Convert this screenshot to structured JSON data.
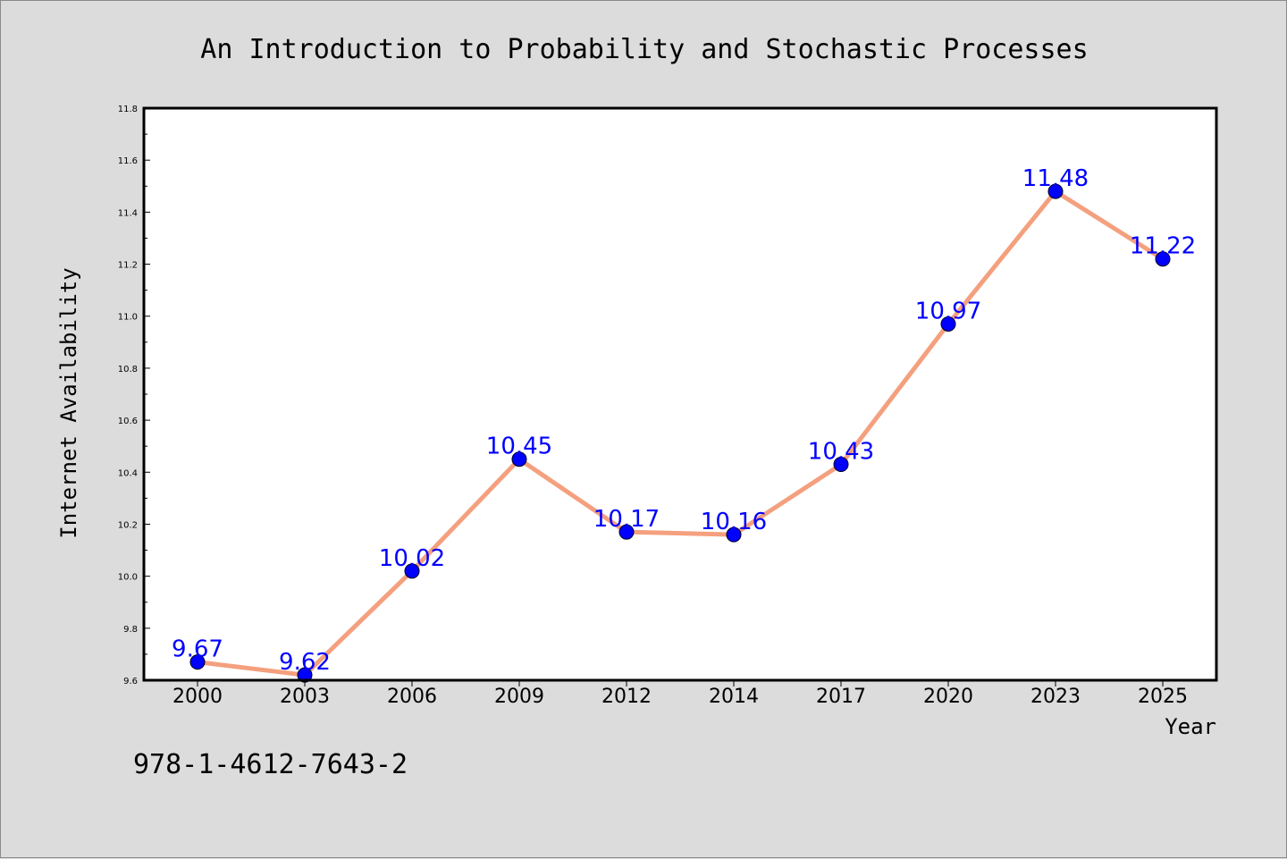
{
  "chart_data": {
    "type": "line",
    "title": "An Introduction to Probability and Stochastic Processes",
    "xlabel": "Year",
    "ylabel": "Internet Availability",
    "categories": [
      "2000",
      "2003",
      "2006",
      "2009",
      "2012",
      "2014",
      "2017",
      "2020",
      "2023",
      "2025"
    ],
    "series": [
      {
        "values": [
          9.67,
          9.62,
          10.02,
          10.45,
          10.17,
          10.16,
          10.43,
          10.97,
          11.48,
          11.22
        ],
        "data_labels": [
          "9.67",
          "9.62",
          "10.02",
          "10.45",
          "10.17",
          "10.16",
          "10.43",
          "10.97",
          "11.48",
          "11.22"
        ],
        "line_color": "#f4a07e",
        "marker_color": "#0000ff"
      }
    ],
    "ylim": [
      9.6,
      11.8
    ],
    "yticks": [
      "9.6",
      "9.8",
      "10.0",
      "10.2",
      "10.4",
      "10.6",
      "10.8",
      "11.0",
      "11.2",
      "11.4",
      "11.6",
      "11.8"
    ],
    "grid": false,
    "legend": "none",
    "plot_background": "#ffffff",
    "figure_background": "#dcdcdc"
  },
  "footer": {
    "isbn": "978-1-4612-7643-2"
  }
}
